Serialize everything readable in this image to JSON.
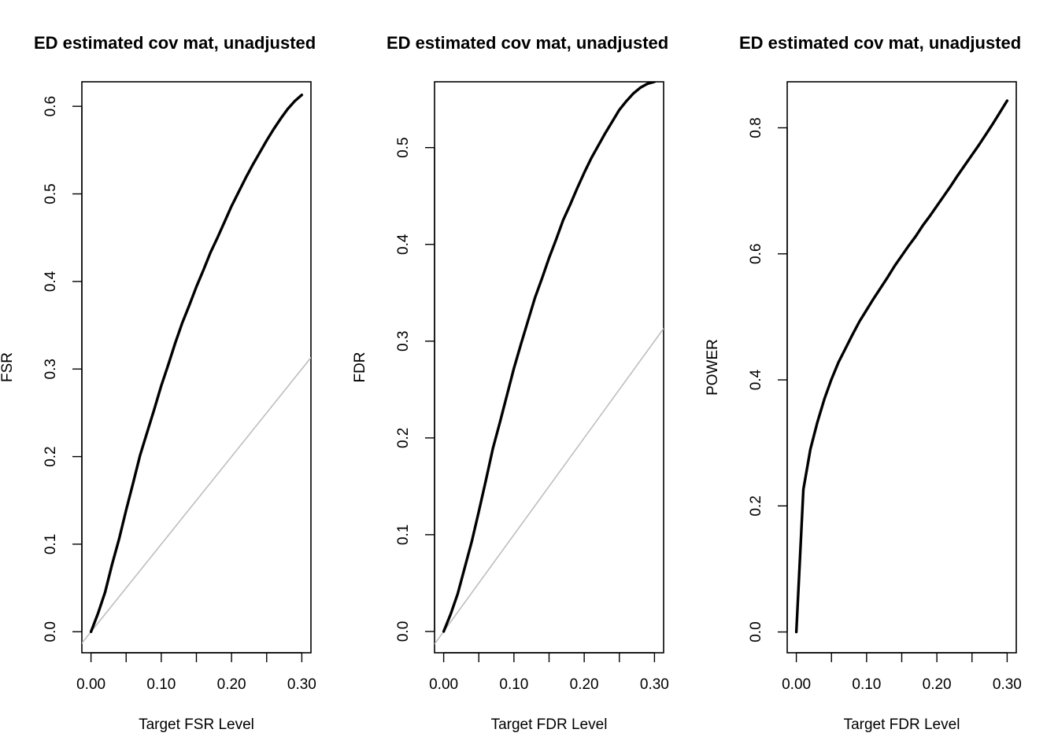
{
  "chart_data": [
    {
      "type": "line",
      "title": "ED estimated cov mat, unadjusted",
      "xlabel": "Target FSR Level",
      "ylabel": "FSR",
      "xlim": [
        -0.013,
        0.313
      ],
      "ylim": [
        -0.024,
        0.628
      ],
      "x_ticks": [
        0.0,
        0.1,
        0.2,
        0.3
      ],
      "x_tick_labels": [
        "0.00",
        "0.10",
        "0.20",
        "0.30"
      ],
      "x_minor_ticks": [
        0.05,
        0.15,
        0.25
      ],
      "y_ticks": [
        0.0,
        0.1,
        0.2,
        0.3,
        0.4,
        0.5,
        0.6
      ],
      "y_tick_labels": [
        "0.0",
        "0.1",
        "0.2",
        "0.3",
        "0.4",
        "0.5",
        "0.6"
      ],
      "grid": false,
      "series": [
        {
          "color": "#000000",
          "x": [
            0.0,
            0.01,
            0.02,
            0.03,
            0.04,
            0.05,
            0.06,
            0.07,
            0.08,
            0.09,
            0.1,
            0.11,
            0.12,
            0.13,
            0.14,
            0.15,
            0.16,
            0.17,
            0.18,
            0.19,
            0.2,
            0.21,
            0.22,
            0.23,
            0.24,
            0.25,
            0.26,
            0.27,
            0.28,
            0.29,
            0.3
          ],
          "y": [
            0.0,
            0.021,
            0.045,
            0.077,
            0.106,
            0.139,
            0.17,
            0.202,
            0.228,
            0.254,
            0.281,
            0.305,
            0.33,
            0.353,
            0.373,
            0.394,
            0.413,
            0.433,
            0.45,
            0.468,
            0.486,
            0.502,
            0.518,
            0.533,
            0.547,
            0.561,
            0.574,
            0.586,
            0.597,
            0.606,
            0.613
          ]
        },
        {
          "color": "#bebebe",
          "x": [
            -0.013,
            0.313
          ],
          "y": [
            -0.013,
            0.313
          ]
        }
      ]
    },
    {
      "type": "line",
      "title": "ED estimated cov mat, unadjusted",
      "xlabel": "Target FDR Level",
      "ylabel": "FDR",
      "xlim": [
        -0.013,
        0.313
      ],
      "ylim": [
        -0.022,
        0.568
      ],
      "x_ticks": [
        0.0,
        0.1,
        0.2,
        0.3
      ],
      "x_tick_labels": [
        "0.00",
        "0.10",
        "0.20",
        "0.30"
      ],
      "x_minor_ticks": [
        0.05,
        0.15,
        0.25
      ],
      "y_ticks": [
        0.0,
        0.1,
        0.2,
        0.3,
        0.4,
        0.5
      ],
      "y_tick_labels": [
        "0.0",
        "0.1",
        "0.2",
        "0.3",
        "0.4",
        "0.5"
      ],
      "grid": false,
      "series": [
        {
          "color": "#000000",
          "x": [
            0.0,
            0.01,
            0.02,
            0.03,
            0.04,
            0.05,
            0.06,
            0.07,
            0.08,
            0.09,
            0.1,
            0.11,
            0.12,
            0.13,
            0.14,
            0.15,
            0.16,
            0.17,
            0.18,
            0.19,
            0.2,
            0.21,
            0.22,
            0.23,
            0.24,
            0.25,
            0.26,
            0.27,
            0.28,
            0.29,
            0.3
          ],
          "y": [
            0.0,
            0.018,
            0.039,
            0.066,
            0.093,
            0.124,
            0.156,
            0.189,
            0.216,
            0.244,
            0.272,
            0.297,
            0.321,
            0.345,
            0.365,
            0.386,
            0.405,
            0.425,
            0.441,
            0.458,
            0.474,
            0.489,
            0.502,
            0.515,
            0.527,
            0.539,
            0.548,
            0.556,
            0.562,
            0.566,
            0.568
          ]
        },
        {
          "color": "#bebebe",
          "x": [
            -0.013,
            0.313
          ],
          "y": [
            -0.013,
            0.313
          ]
        }
      ]
    },
    {
      "type": "line",
      "title": "ED estimated cov mat, unadjusted",
      "xlabel": "Target FDR Level",
      "ylabel": "POWER",
      "xlim": [
        -0.013,
        0.313
      ],
      "ylim": [
        -0.033,
        0.873
      ],
      "x_ticks": [
        0.0,
        0.1,
        0.2,
        0.3
      ],
      "x_tick_labels": [
        "0.00",
        "0.10",
        "0.20",
        "0.30"
      ],
      "x_minor_ticks": [
        0.05,
        0.15,
        0.25
      ],
      "y_ticks": [
        0.0,
        0.2,
        0.4,
        0.6,
        0.8
      ],
      "y_tick_labels": [
        "0.0",
        "0.2",
        "0.4",
        "0.6",
        "0.8"
      ],
      "grid": false,
      "series": [
        {
          "color": "#000000",
          "x": [
            0.0,
            0.01,
            0.02,
            0.03,
            0.04,
            0.05,
            0.06,
            0.07,
            0.08,
            0.09,
            0.1,
            0.11,
            0.12,
            0.13,
            0.14,
            0.15,
            0.16,
            0.17,
            0.18,
            0.19,
            0.2,
            0.21,
            0.22,
            0.23,
            0.24,
            0.25,
            0.26,
            0.27,
            0.28,
            0.29,
            0.3
          ],
          "y": [
            0.0,
            0.226,
            0.29,
            0.333,
            0.37,
            0.401,
            0.428,
            0.45,
            0.472,
            0.493,
            0.511,
            0.529,
            0.546,
            0.563,
            0.581,
            0.597,
            0.613,
            0.628,
            0.645,
            0.66,
            0.676,
            0.692,
            0.708,
            0.725,
            0.741,
            0.757,
            0.773,
            0.79,
            0.807,
            0.825,
            0.843
          ]
        }
      ]
    }
  ]
}
